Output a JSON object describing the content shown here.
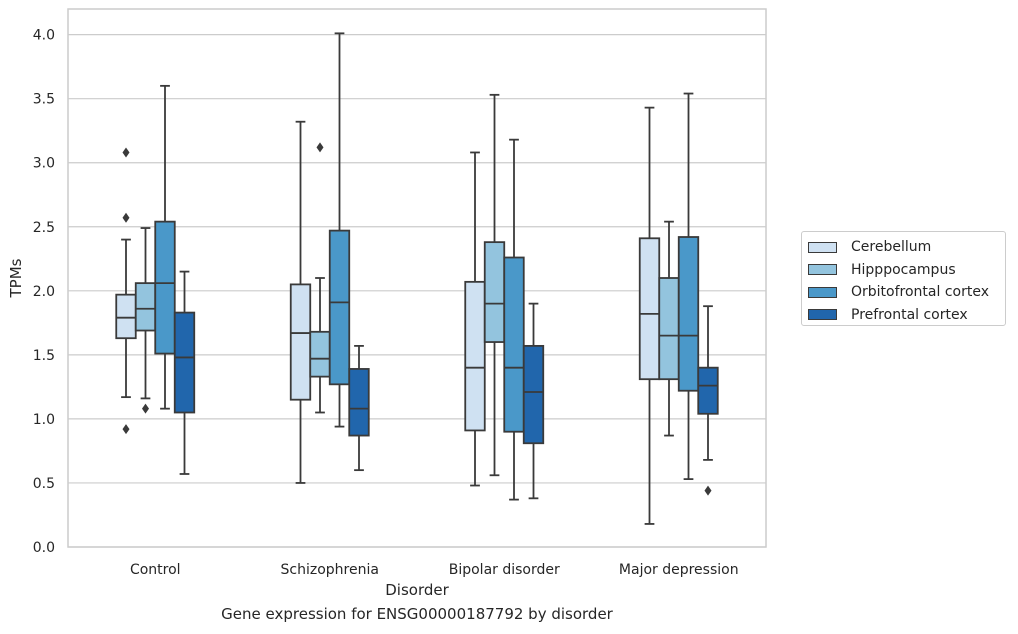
{
  "caption": "Gene expression for ENSG00000187792 by disorder",
  "chart_data": {
    "type": "box",
    "title": "",
    "xlabel": "Disorder",
    "ylabel": "TPMs",
    "ylim": [
      0.0,
      4.2
    ],
    "yticks": [
      "0.0",
      "0.5",
      "1.0",
      "1.5",
      "2.0",
      "2.5",
      "3.0",
      "3.5",
      "4.0"
    ],
    "grid": "horizontal",
    "legend_position": "right",
    "categories": [
      "Control",
      "Schizophrenia",
      "Bipolar disorder",
      "Major depression"
    ],
    "series": [
      {
        "name": "Cerebellum",
        "color": "#cfe1f2",
        "boxes": [
          {
            "whislo": 1.17,
            "q1": 1.63,
            "med": 1.79,
            "q3": 1.97,
            "whishi": 2.4,
            "fliers": [
              3.08,
              2.57,
              0.92
            ]
          },
          {
            "whislo": 0.5,
            "q1": 1.15,
            "med": 1.67,
            "q3": 2.05,
            "whishi": 3.32,
            "fliers": []
          },
          {
            "whislo": 0.48,
            "q1": 0.91,
            "med": 1.4,
            "q3": 2.07,
            "whishi": 3.08,
            "fliers": []
          },
          {
            "whislo": 0.18,
            "q1": 1.31,
            "med": 1.82,
            "q3": 2.41,
            "whishi": 3.43,
            "fliers": []
          }
        ]
      },
      {
        "name": "Hipppocampus",
        "color": "#93c4de",
        "boxes": [
          {
            "whislo": 1.16,
            "q1": 1.69,
            "med": 1.86,
            "q3": 2.06,
            "whishi": 2.49,
            "fliers": [
              1.08
            ]
          },
          {
            "whislo": 1.05,
            "q1": 1.33,
            "med": 1.47,
            "q3": 1.68,
            "whishi": 2.1,
            "fliers": [
              3.12
            ]
          },
          {
            "whislo": 0.56,
            "q1": 1.6,
            "med": 1.9,
            "q3": 2.38,
            "whishi": 3.53,
            "fliers": []
          },
          {
            "whislo": 0.87,
            "q1": 1.31,
            "med": 1.65,
            "q3": 2.1,
            "whishi": 2.54,
            "fliers": []
          }
        ]
      },
      {
        "name": "Orbitofrontal cortex",
        "color": "#4a98c9",
        "boxes": [
          {
            "whislo": 1.08,
            "q1": 1.51,
            "med": 2.06,
            "q3": 2.54,
            "whishi": 3.6,
            "fliers": []
          },
          {
            "whislo": 0.94,
            "q1": 1.27,
            "med": 1.91,
            "q3": 2.47,
            "whishi": 4.01,
            "fliers": []
          },
          {
            "whislo": 0.37,
            "q1": 0.9,
            "med": 1.4,
            "q3": 2.26,
            "whishi": 3.18,
            "fliers": []
          },
          {
            "whislo": 0.53,
            "q1": 1.22,
            "med": 1.65,
            "q3": 2.42,
            "whishi": 3.54,
            "fliers": []
          }
        ]
      },
      {
        "name": "Prefrontal cortex",
        "color": "#2166ac",
        "boxes": [
          {
            "whislo": 0.57,
            "q1": 1.05,
            "med": 1.48,
            "q3": 1.83,
            "whishi": 2.15,
            "fliers": []
          },
          {
            "whislo": 0.6,
            "q1": 0.87,
            "med": 1.08,
            "q3": 1.39,
            "whishi": 1.57,
            "fliers": []
          },
          {
            "whislo": 0.38,
            "q1": 0.81,
            "med": 1.21,
            "q3": 1.57,
            "whishi": 1.9,
            "fliers": []
          },
          {
            "whislo": 0.68,
            "q1": 1.04,
            "med": 1.26,
            "q3": 1.4,
            "whishi": 1.88,
            "fliers": [
              0.44
            ]
          }
        ]
      }
    ]
  }
}
